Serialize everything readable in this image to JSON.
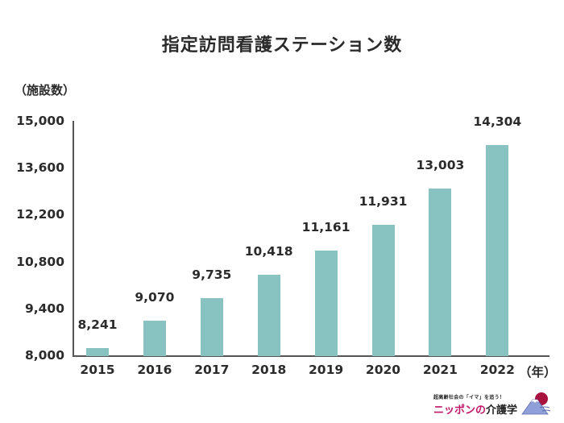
{
  "chart_data": {
    "type": "bar",
    "title": "指定訪問看護ステーション数",
    "xlabel": "（年）",
    "ylabel": "（施設数）",
    "categories": [
      "2015",
      "2016",
      "2017",
      "2018",
      "2019",
      "2020",
      "2021",
      "2022"
    ],
    "values": [
      8241,
      9070,
      9735,
      10418,
      11161,
      11931,
      13003,
      14304
    ],
    "value_labels": [
      "8,241",
      "9,070",
      "9,735",
      "10,418",
      "11,161",
      "11,931",
      "13,003",
      "14,304"
    ],
    "ylim": [
      8000,
      15000
    ],
    "yticks": [
      8000,
      9400,
      10800,
      12200,
      13600,
      15000
    ],
    "ytick_labels": [
      "8,000",
      "9,400",
      "10,800",
      "12,200",
      "13,600",
      "15,000"
    ],
    "grid": false,
    "legend": null,
    "bar_color": "#88c3c2"
  },
  "header": {
    "title": "指定訪問看護ステーション数"
  },
  "axes": {
    "y_unit": "（施設数）",
    "x_unit": "（年）",
    "axis_color": "#555555"
  },
  "logo": {
    "tagline": "超高齢社会の「イマ」を追う！",
    "name_part1": "ニッポンの",
    "name_part2": "介護学",
    "brand_color": "#c0166a",
    "mountain_color": "#8fa0d8",
    "sun_color": "#a8123f"
  }
}
